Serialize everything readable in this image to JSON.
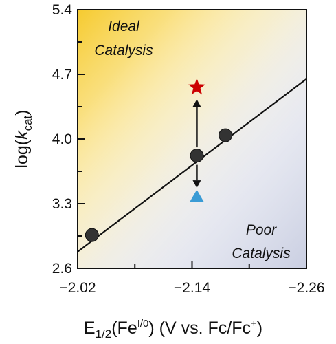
{
  "chart_data": {
    "type": "scatter",
    "xlabel": {
      "base": "E",
      "base_sub": "1/2",
      "mid": "(Fe",
      "mid_sup": "I/0",
      "tail": ") (V vs. Fc/Fc",
      "tail_sup": "+",
      "end": ")"
    },
    "ylabel": {
      "base": "log(",
      "italic": "k",
      "sub": "cat",
      "end": ")"
    },
    "xlim": [
      -2.02,
      -2.26
    ],
    "ylim": [
      2.6,
      5.4
    ],
    "x_reversed": true,
    "x_ticks": [
      -2.02,
      -2.14,
      -2.26
    ],
    "x_tick_labels": [
      "−2.02",
      "−2.14",
      "−2.26"
    ],
    "y_ticks": [
      2.6,
      3.3,
      4.0,
      4.7,
      5.4
    ],
    "y_tick_labels": [
      "2.6",
      "3.3",
      "4.0",
      "4.7",
      "5.4"
    ],
    "series": [
      {
        "marker": "circle",
        "color": "#333333",
        "x": [
          -2.035,
          -2.145,
          -2.175
        ],
        "y": [
          2.96,
          3.82,
          4.04
        ]
      },
      {
        "marker": "star",
        "color": "#cc0000",
        "x": [
          -2.145
        ],
        "y": [
          4.56
        ]
      },
      {
        "marker": "triangle",
        "color": "#3a9bd5",
        "x": [
          -2.145
        ],
        "y": [
          3.37
        ]
      }
    ],
    "fit_line": {
      "x": [
        -2.02,
        -2.26
      ],
      "y": [
        2.78,
        4.65
      ],
      "color": "#111111"
    },
    "arrows": [
      {
        "from": [
          -2.145,
          3.91
        ],
        "to": [
          -2.145,
          4.43
        ]
      },
      {
        "from": [
          -2.145,
          3.72
        ],
        "to": [
          -2.145,
          3.47
        ]
      }
    ],
    "regions": [
      {
        "lines": [
          "Ideal",
          "Catalysis"
        ],
        "position": "top-left",
        "color": "#f5c518"
      },
      {
        "lines": [
          "Poor",
          "Catalysis"
        ],
        "position": "bottom-right",
        "color": "#c7cce0"
      }
    ]
  }
}
